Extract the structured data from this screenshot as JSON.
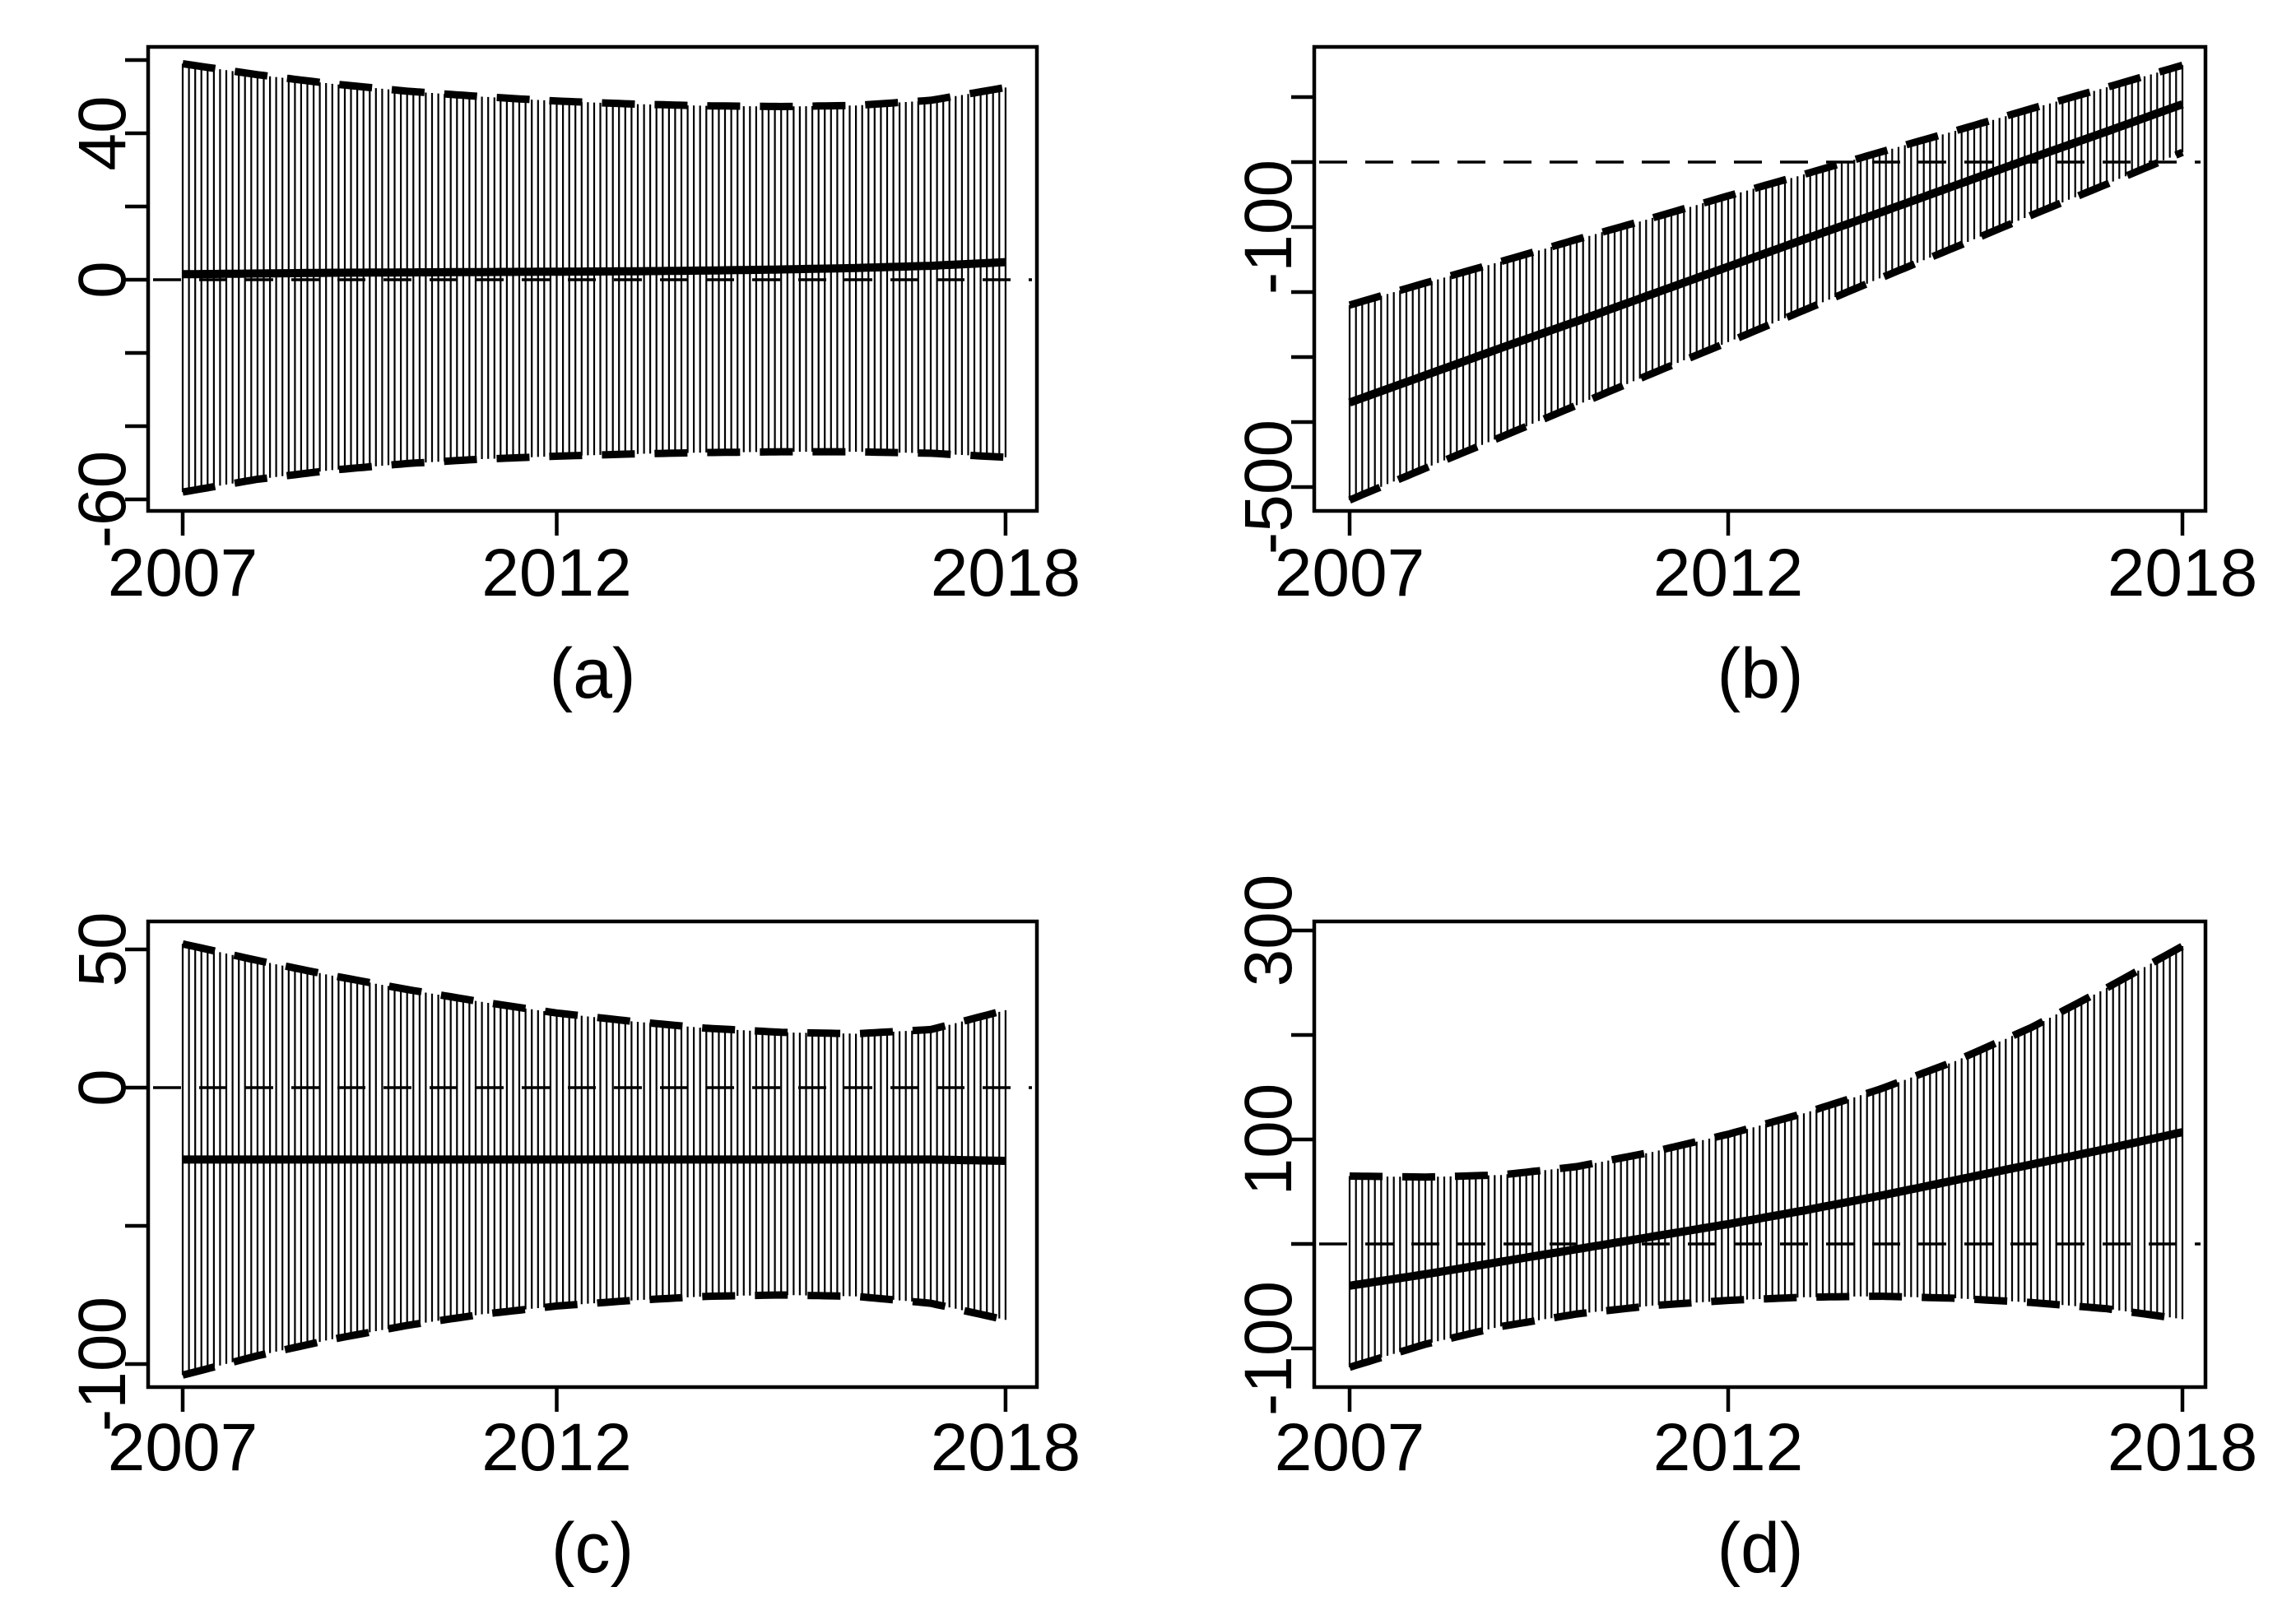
{
  "figure": {
    "background": "#ffffff",
    "ink": "#000000",
    "description_visible_text_only": "four panel statistical chart"
  },
  "panels": [
    {
      "letter": "(a)"
    },
    {
      "letter": "(b)"
    },
    {
      "letter": "(c)"
    },
    {
      "letter": "(d)"
    }
  ],
  "chart_data": [
    {
      "panel": "(a)",
      "type": "line",
      "subtype": "center line with dashed confidence envelopes and dense vertical CI hatching",
      "x_anchor_years": [
        2007,
        2008,
        2009,
        2010,
        2011,
        2012,
        2013,
        2014,
        2015,
        2016,
        2017,
        2018
      ],
      "series": [
        {
          "name": "center",
          "values": [
            1.5,
            1.7,
            1.9,
            2.0,
            2.1,
            2.2,
            2.3,
            2.5,
            2.8,
            3.2,
            3.8,
            4.8
          ]
        },
        {
          "name": "upper_envelope",
          "values": [
            59,
            56,
            53.5,
            51.5,
            50,
            48.8,
            48,
            47.5,
            47.3,
            47.6,
            49,
            52.5
          ]
        },
        {
          "name": "lower_envelope",
          "values": [
            -58,
            -54.5,
            -52,
            -50.2,
            -49,
            -48.2,
            -47.6,
            -47.2,
            -47,
            -47,
            -47.4,
            -48.5
          ]
        }
      ],
      "x_ticks": [
        {
          "value": 2007,
          "label": "2007"
        },
        {
          "value": 2012,
          "label": "2012"
        },
        {
          "value": 2018,
          "label": "2018"
        }
      ],
      "y_ticks": [
        {
          "value": 60,
          "label": ""
        },
        {
          "value": 40,
          "label": "40"
        },
        {
          "value": 20,
          "label": ""
        },
        {
          "value": 0,
          "label": "0"
        },
        {
          "value": -20,
          "label": ""
        },
        {
          "value": -40,
          "label": ""
        },
        {
          "value": -60,
          "label": "-60"
        }
      ],
      "xlim": [
        2006.5,
        2018.4
      ],
      "ylim": [
        -63,
        64
      ],
      "reference_line_y": 0,
      "points_per_year": 12,
      "grid": false,
      "xlabel": "",
      "ylabel": ""
    },
    {
      "panel": "(b)",
      "type": "line",
      "subtype": "center line with dashed confidence envelopes and dense vertical CI hatching",
      "x_anchor_years": [
        2007,
        2008,
        2009,
        2010,
        2011,
        2012,
        2013,
        2014,
        2015,
        2016,
        2017,
        2018
      ],
      "series": [
        {
          "name": "center",
          "values": [
            -370,
            -328,
            -286,
            -245,
            -203,
            -161,
            -119,
            -78,
            -36,
            6,
            47,
            89
          ]
        },
        {
          "name": "upper_envelope",
          "values": [
            -220,
            -186,
            -153,
            -119,
            -86,
            -52,
            -19,
            15,
            48,
            82,
            115,
            149
          ]
        },
        {
          "name": "lower_envelope",
          "values": [
            -520,
            -471,
            -423,
            -374,
            -325,
            -277,
            -228,
            -179,
            -131,
            -82,
            -34,
            15
          ]
        }
      ],
      "x_ticks": [
        {
          "value": 2007,
          "label": "2007"
        },
        {
          "value": 2012,
          "label": "2012"
        },
        {
          "value": 2018,
          "label": "2018"
        }
      ],
      "y_ticks": [
        {
          "value": 100,
          "label": ""
        },
        {
          "value": 0,
          "label": ""
        },
        {
          "value": -100,
          "label": "-100"
        },
        {
          "value": -200,
          "label": ""
        },
        {
          "value": -300,
          "label": ""
        },
        {
          "value": -400,
          "label": ""
        },
        {
          "value": -500,
          "label": "-500"
        }
      ],
      "xlim": [
        2006.5,
        2018.4
      ],
      "ylim": [
        -537,
        177
      ],
      "reference_line_y": 0,
      "points_per_year": 12,
      "grid": false,
      "xlabel": "",
      "ylabel": ""
    },
    {
      "panel": "(c)",
      "type": "line",
      "subtype": "center line with dashed confidence envelopes and dense vertical CI hatching",
      "x_anchor_years": [
        2007,
        2008,
        2009,
        2010,
        2011,
        2012,
        2013,
        2014,
        2015,
        2016,
        2017,
        2018
      ],
      "series": [
        {
          "name": "center",
          "values": [
            -26,
            -26,
            -26,
            -26,
            -26,
            -26,
            -26,
            -26,
            -26,
            -26,
            -26,
            -26.5
          ]
        },
        {
          "name": "upper_envelope",
          "values": [
            52,
            46,
            40.5,
            35.5,
            31,
            27,
            24,
            21.5,
            20,
            19.5,
            21,
            28
          ]
        },
        {
          "name": "lower_envelope",
          "values": [
            -104,
            -97,
            -91,
            -86,
            -82,
            -79,
            -77,
            -75.5,
            -75,
            -75.5,
            -78,
            -84
          ]
        }
      ],
      "x_ticks": [
        {
          "value": 2007,
          "label": "2007"
        },
        {
          "value": 2012,
          "label": "2012"
        },
        {
          "value": 2018,
          "label": "2018"
        }
      ],
      "y_ticks": [
        {
          "value": 50,
          "label": "50"
        },
        {
          "value": 0,
          "label": "0"
        },
        {
          "value": -50,
          "label": ""
        },
        {
          "value": -100,
          "label": "-100"
        }
      ],
      "xlim": [
        2006.5,
        2018.4
      ],
      "ylim": [
        -109,
        60
      ],
      "reference_line_y": 0,
      "points_per_year": 12,
      "grid": false,
      "xlabel": "",
      "ylabel": ""
    },
    {
      "panel": "(d)",
      "type": "line",
      "subtype": "center line with dashed confidence envelopes and dense vertical CI hatching",
      "x_anchor_years": [
        2007,
        2008,
        2009,
        2010,
        2011,
        2012,
        2013,
        2014,
        2015,
        2016,
        2017,
        2018
      ],
      "series": [
        {
          "name": "center",
          "values": [
            -40,
            -29,
            -17,
            -5,
            7,
            19,
            32,
            46,
            61,
            76,
            91,
            107
          ]
        },
        {
          "name": "upper_envelope",
          "values": [
            65,
            64,
            66,
            74,
            88,
            105,
            125,
            148,
            175,
            207,
            245,
            285
          ]
        },
        {
          "name": "lower_envelope",
          "values": [
            -118,
            -96,
            -79,
            -67,
            -59,
            -54,
            -51,
            -50,
            -52,
            -56,
            -62,
            -72
          ]
        }
      ],
      "x_ticks": [
        {
          "value": 2007,
          "label": "2007"
        },
        {
          "value": 2012,
          "label": "2012"
        },
        {
          "value": 2018,
          "label": "2018"
        }
      ],
      "y_ticks": [
        {
          "value": 300,
          "label": "300"
        },
        {
          "value": 200,
          "label": ""
        },
        {
          "value": 100,
          "label": "100"
        },
        {
          "value": 0,
          "label": ""
        },
        {
          "value": -100,
          "label": "-100"
        }
      ],
      "xlim": [
        2006.5,
        2018.4
      ],
      "ylim": [
        -137,
        309
      ],
      "reference_line_y": 0,
      "points_per_year": 12,
      "grid": false,
      "xlabel": "",
      "ylabel": ""
    }
  ]
}
